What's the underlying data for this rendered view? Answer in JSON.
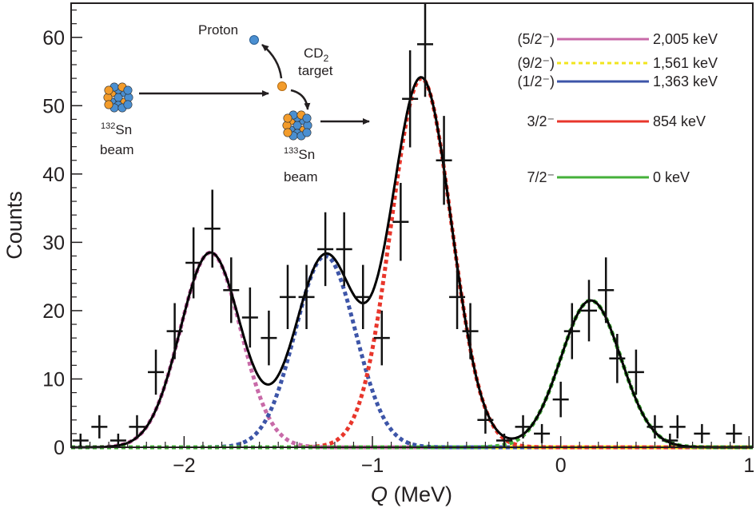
{
  "chart_data": {
    "type": "scatter",
    "xlabel": {
      "italic": "Q",
      "rest": " (MeV)"
    },
    "ylabel": "Counts",
    "xlim": [
      -2.6,
      1.02
    ],
    "ylim": [
      0,
      65
    ],
    "xticks": [
      -2,
      -1,
      0,
      1
    ],
    "xtick_labels": [
      "−2",
      "−1",
      "0",
      "1"
    ],
    "yticks": [
      0,
      10,
      20,
      30,
      40,
      50,
      60
    ],
    "ytick_labels": [
      "0",
      "10",
      "20",
      "30",
      "40",
      "50",
      "60"
    ],
    "grid": false,
    "legend_placement": "top-right",
    "measured_points": [
      {
        "x": -2.55,
        "y": 1,
        "err": 1.0
      },
      {
        "x": -2.45,
        "y": 3,
        "err": 1.7
      },
      {
        "x": -2.35,
        "y": 1,
        "err": 1.0
      },
      {
        "x": -2.25,
        "y": 3,
        "err": 1.7
      },
      {
        "x": -2.15,
        "y": 11,
        "err": 3.3
      },
      {
        "x": -2.05,
        "y": 17,
        "err": 4.1
      },
      {
        "x": -1.95,
        "y": 27,
        "err": 5.2
      },
      {
        "x": -1.85,
        "y": 32,
        "err": 5.7
      },
      {
        "x": -1.75,
        "y": 23,
        "err": 4.8
      },
      {
        "x": -1.65,
        "y": 19,
        "err": 4.4
      },
      {
        "x": -1.55,
        "y": 16,
        "err": 4.0
      },
      {
        "x": -1.45,
        "y": 22,
        "err": 4.7
      },
      {
        "x": -1.35,
        "y": 22,
        "err": 4.7
      },
      {
        "x": -1.25,
        "y": 29,
        "err": 5.4
      },
      {
        "x": -1.15,
        "y": 29,
        "err": 5.4
      },
      {
        "x": -1.05,
        "y": 22,
        "err": 4.7
      },
      {
        "x": -0.95,
        "y": 16,
        "err": 4.0
      },
      {
        "x": -0.85,
        "y": 33,
        "err": 5.7
      },
      {
        "x": -0.8,
        "y": 51,
        "err": 7.1
      },
      {
        "x": -0.72,
        "y": 59,
        "err": 7.7
      },
      {
        "x": -0.62,
        "y": 42,
        "err": 6.5
      },
      {
        "x": -0.55,
        "y": 22,
        "err": 4.7
      },
      {
        "x": -0.48,
        "y": 17,
        "err": 4.1
      },
      {
        "x": -0.4,
        "y": 4,
        "err": 2.0
      },
      {
        "x": -0.3,
        "y": 1,
        "err": 1.0
      },
      {
        "x": -0.2,
        "y": 3,
        "err": 1.7
      },
      {
        "x": -0.1,
        "y": 2,
        "err": 1.4
      },
      {
        "x": 0.0,
        "y": 7,
        "err": 2.6
      },
      {
        "x": 0.06,
        "y": 17,
        "err": 4.1
      },
      {
        "x": 0.15,
        "y": 20,
        "err": 4.5
      },
      {
        "x": 0.24,
        "y": 23,
        "err": 4.8
      },
      {
        "x": 0.3,
        "y": 13,
        "err": 3.6
      },
      {
        "x": 0.4,
        "y": 11,
        "err": 3.3
      },
      {
        "x": 0.5,
        "y": 3,
        "err": 1.7
      },
      {
        "x": 0.58,
        "y": 1,
        "err": 1.0
      },
      {
        "x": 0.62,
        "y": 3,
        "err": 1.7
      },
      {
        "x": 0.75,
        "y": 2,
        "err": 1.4
      },
      {
        "x": 0.92,
        "y": 2,
        "err": 1.4
      }
    ],
    "fit_components": [
      {
        "name": "(5/2⁻)",
        "energy": "2,005 keV",
        "color": "#c86aa8",
        "center": -1.86,
        "amplitude": 28.5,
        "sigma": 0.16
      },
      {
        "name": "(9/2⁻)",
        "energy": "1,561 keV",
        "color": "#f2e51e",
        "center": -1.42,
        "amplitude": 0,
        "sigma": 0.16
      },
      {
        "name": "(1/2⁻)",
        "energy": "1,363 keV",
        "color": "#3d55a8",
        "center": -1.25,
        "amplitude": 28,
        "sigma": 0.16
      },
      {
        "name": "3/2⁻",
        "energy": "854 keV",
        "color": "#e8362b",
        "center": -0.74,
        "amplitude": 54,
        "sigma": 0.16
      },
      {
        "name": "7/2⁻",
        "energy": "0 keV",
        "color": "#45b03a",
        "center": 0.16,
        "amplitude": 21.5,
        "sigma": 0.16
      }
    ],
    "total_fit_color": "#000000"
  },
  "inset": {
    "proton_label": "Proton",
    "target_label": "CD",
    "target_subscript": "2",
    "target_word": "target",
    "beam_in_mass": "132",
    "beam_in_element": "Sn",
    "beam_in_word": "beam",
    "beam_out_mass": "133",
    "beam_out_element": "Sn",
    "beam_out_word": "beam",
    "nucleus_colors": {
      "proton": "#f39c2b",
      "neutron": "#4a8fd1"
    }
  }
}
